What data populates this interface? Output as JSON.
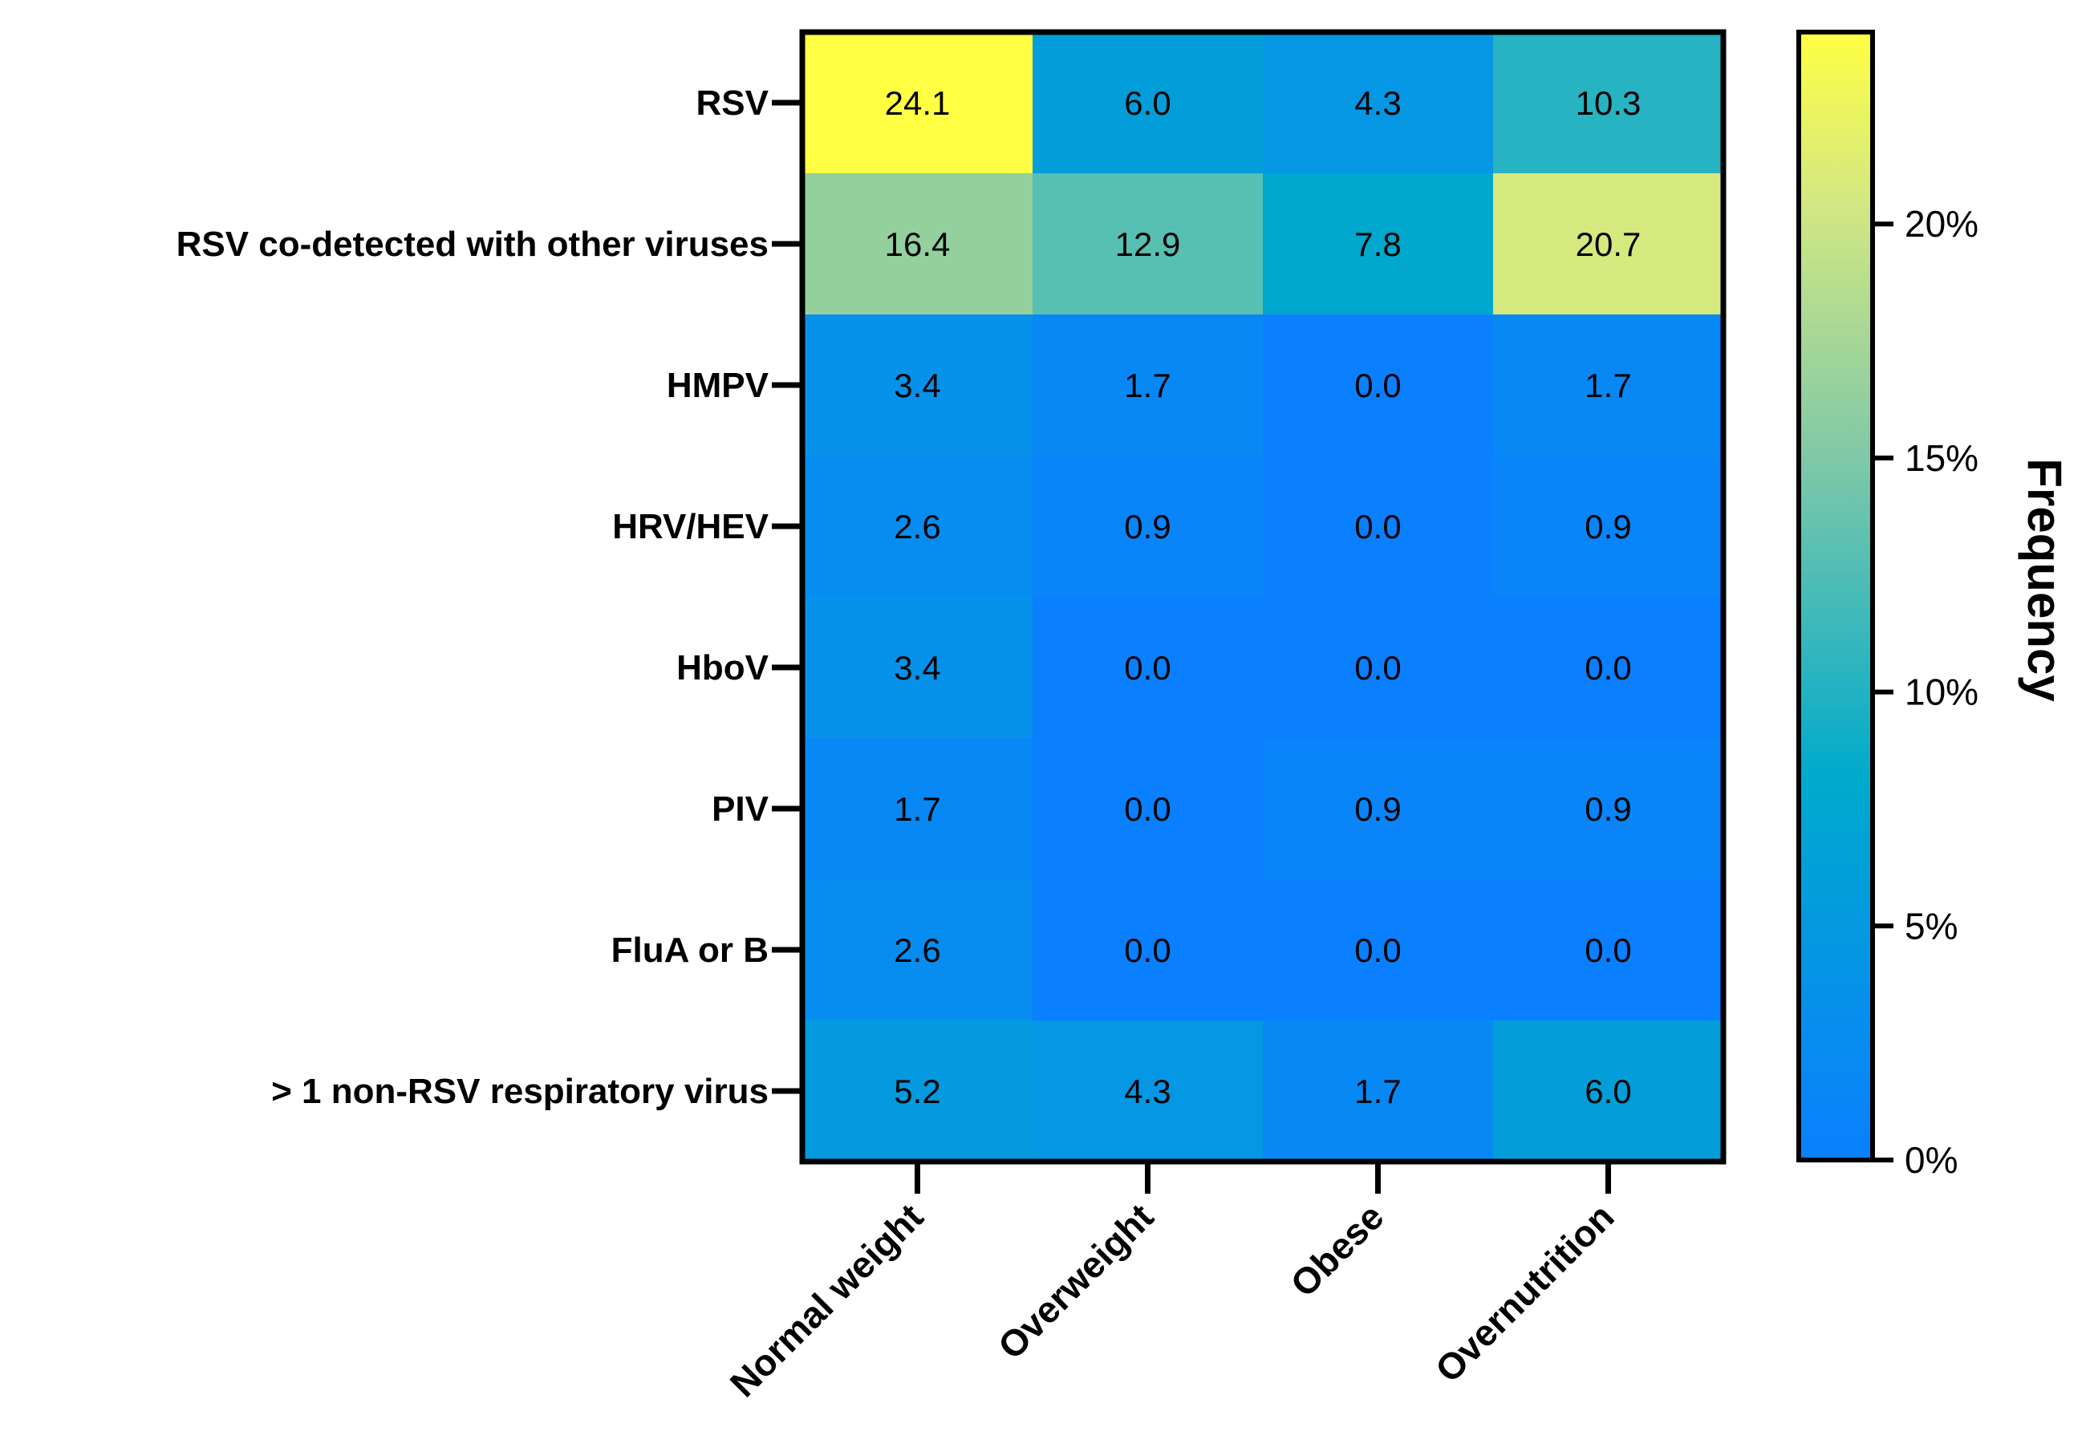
{
  "chart_data": {
    "type": "heatmap",
    "rows": [
      "RSV",
      "RSV co-detected with other viruses",
      "HMPV",
      "HRV/HEV",
      "HboV",
      "PIV",
      "FluA or B",
      "> 1 non-RSV respiratory virus"
    ],
    "columns": [
      "Normal weight",
      "Overweight",
      "Obese",
      "Overnutrition"
    ],
    "values": [
      [
        24.1,
        6.0,
        4.3,
        10.3
      ],
      [
        16.4,
        12.9,
        7.8,
        20.7
      ],
      [
        3.4,
        1.7,
        0.0,
        1.7
      ],
      [
        2.6,
        0.9,
        0.0,
        0.9
      ],
      [
        3.4,
        0.0,
        0.0,
        0.0
      ],
      [
        1.7,
        0.0,
        0.9,
        0.9
      ],
      [
        2.6,
        0.0,
        0.0,
        0.0
      ],
      [
        5.2,
        4.3,
        1.7,
        6.0
      ]
    ],
    "value_labels": [
      [
        "24.1",
        "6.0",
        "4.3",
        "10.3"
      ],
      [
        "16.4",
        "12.9",
        "7.8",
        "20.7"
      ],
      [
        "3.4",
        "1.7",
        "0.0",
        "1.7"
      ],
      [
        "2.6",
        "0.9",
        "0.0",
        "0.9"
      ],
      [
        "3.4",
        "0.0",
        "0.0",
        "0.0"
      ],
      [
        "1.7",
        "0.0",
        "0.9",
        "0.9"
      ],
      [
        "2.6",
        "0.0",
        "0.0",
        "0.0"
      ],
      [
        "5.2",
        "4.3",
        "1.7",
        "6.0"
      ]
    ],
    "colorbar": {
      "title": "Frequency",
      "range": [
        0,
        24.1
      ],
      "ticks": [
        0,
        5,
        10,
        15,
        20
      ],
      "tick_labels": [
        "0%",
        "5%",
        "10%",
        "15%",
        "20%"
      ],
      "colors": [
        {
          "stop": 0.0,
          "color": "#0a7fff"
        },
        {
          "stop": 0.34,
          "color": "#00aacc"
        },
        {
          "stop": 0.62,
          "color": "#7ec8a8"
        },
        {
          "stop": 0.85,
          "color": "#d3e882"
        },
        {
          "stop": 1.0,
          "color": "#ffff44"
        }
      ]
    }
  }
}
